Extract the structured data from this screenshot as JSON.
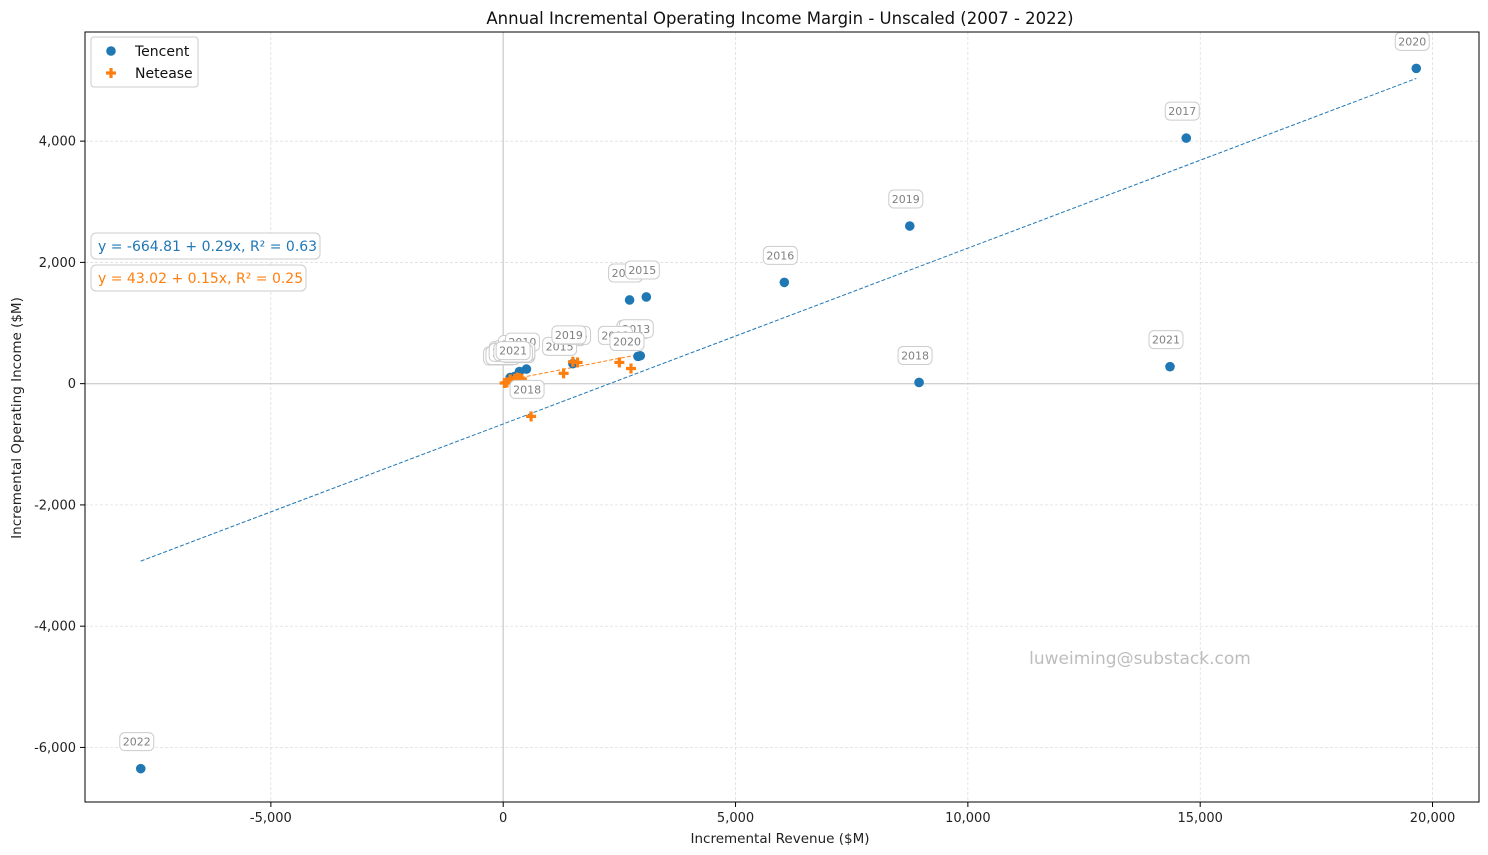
{
  "chart_data": {
    "type": "scatter",
    "title": "Annual Incremental Operating Income Margin - Unscaled (2007 - 2022)",
    "xlabel": "Incremental Revenue ($M)",
    "ylabel": "Incremental Operating Income ($M)",
    "xlim": [
      -9000,
      21000
    ],
    "ylim": [
      -6900,
      5800
    ],
    "x_ticks": [
      -5000,
      0,
      5000,
      10000,
      15000,
      20000
    ],
    "x_tick_labels": [
      "-5,000",
      "0",
      "5,000",
      "10,000",
      "15,000",
      "20,000"
    ],
    "y_ticks": [
      -6000,
      -4000,
      -2000,
      0,
      2000,
      4000
    ],
    "y_tick_labels": [
      "-6,000",
      "-4,000",
      "-2,000",
      "0",
      "2,000",
      "4,000"
    ],
    "negative_tick_color": "#c44e52",
    "grid": true,
    "legend_position": "top-left",
    "watermark": "luweiming@substack.com",
    "series": [
      {
        "name": "Tencent",
        "marker": "circle",
        "color": "#1f77b4",
        "equation": "y = -664.81 + 0.29x, R² = 0.63",
        "fit": {
          "intercept": -664.81,
          "slope": 0.29,
          "x_range": [
            -7800,
            19650
          ]
        },
        "points": [
          {
            "year": "2007",
            "x": 150,
            "y": 100
          },
          {
            "year": "2008",
            "x": 250,
            "y": 120
          },
          {
            "year": "2009",
            "x": 350,
            "y": 200
          },
          {
            "year": "2010",
            "x": 500,
            "y": 240
          },
          {
            "year": "2011",
            "x": 1500,
            "y": 330
          },
          {
            "year": "2012",
            "x": 2900,
            "y": 450
          },
          {
            "year": "2013",
            "x": 2950,
            "y": 460
          },
          {
            "year": "2014",
            "x": 2720,
            "y": 1380
          },
          {
            "year": "2015",
            "x": 3080,
            "y": 1430
          },
          {
            "year": "2016",
            "x": 6050,
            "y": 1670
          },
          {
            "year": "2017",
            "x": 14700,
            "y": 4050
          },
          {
            "year": "2018",
            "x": 8950,
            "y": 20
          },
          {
            "year": "2019",
            "x": 8750,
            "y": 2600
          },
          {
            "year": "2020",
            "x": 19650,
            "y": 5200
          },
          {
            "year": "2021",
            "x": 14350,
            "y": 280
          },
          {
            "year": "2022",
            "x": -7800,
            "y": -6350
          }
        ]
      },
      {
        "name": "Netease",
        "marker": "plus",
        "color": "#ff7f0e",
        "equation": "y = 43.02 + 0.15x, R² = 0.25",
        "fit": {
          "intercept": 43.02,
          "slope": 0.15,
          "x_range": [
            0,
            2800
          ]
        },
        "points": [
          {
            "year": "2007",
            "x": 30,
            "y": 10
          },
          {
            "year": "2008",
            "x": 80,
            "y": 20
          },
          {
            "year": "2009",
            "x": 150,
            "y": 70
          },
          {
            "year": "2010",
            "x": 250,
            "y": 80
          },
          {
            "year": "2011",
            "x": 350,
            "y": 90
          },
          {
            "year": "2012",
            "x": 400,
            "y": 50
          },
          {
            "year": "2013",
            "x": 2500,
            "y": 350
          },
          {
            "year": "2014",
            "x": 400,
            "y": 80
          },
          {
            "year": "2015",
            "x": 1300,
            "y": 170
          },
          {
            "year": "2016",
            "x": 1600,
            "y": 350
          },
          {
            "year": "2017",
            "x": 350,
            "y": 60
          },
          {
            "year": "2018",
            "x": 600,
            "y": -540
          },
          {
            "year": "2019",
            "x": 1500,
            "y": 360
          },
          {
            "year": "2020",
            "x": 2750,
            "y": 250
          },
          {
            "year": "2021",
            "x": 300,
            "y": 100
          }
        ]
      }
    ]
  }
}
